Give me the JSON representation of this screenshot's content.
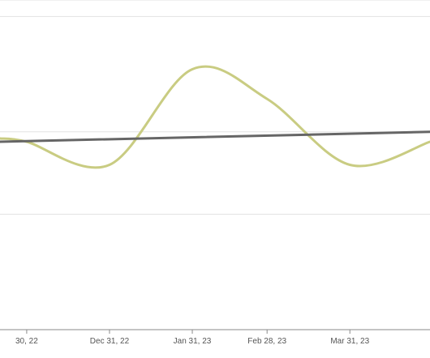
{
  "chart_data": {
    "type": "line",
    "title": "",
    "xlabel": "",
    "ylabel": "",
    "x_tick_labels": [
      "30, 22",
      "Dec 31, 22",
      "Jan 31, 23",
      "Feb 28, 23",
      "Mar 31, 23"
    ],
    "x_ticks": [
      "2022-11-30",
      "2022-12-31",
      "2023-01-31",
      "2023-02-28",
      "2023-03-31"
    ],
    "xlim": [
      "2022-11-20",
      "2023-04-30"
    ],
    "ylim": [
      0,
      100
    ],
    "y_gridlines": [
      35,
      60,
      95,
      100
    ],
    "grid": true,
    "legend": "none",
    "series": [
      {
        "color": "#c9cc82",
        "stroke": 3,
        "smooth": true,
        "points": [
          {
            "x": "2022-11-20",
            "y": 58
          },
          {
            "x": "2022-11-30",
            "y": 57
          },
          {
            "x": "2022-12-31",
            "y": 50
          },
          {
            "x": "2023-01-31",
            "y": 79
          },
          {
            "x": "2023-02-28",
            "y": 70
          },
          {
            "x": "2023-03-31",
            "y": 50
          },
          {
            "x": "2023-04-30",
            "y": 57
          }
        ]
      },
      {
        "color": "#666666",
        "stroke": 3,
        "smooth": false,
        "points": [
          {
            "x": "2022-11-20",
            "y": 57
          },
          {
            "x": "2023-04-30",
            "y": 60
          }
        ]
      }
    ]
  }
}
